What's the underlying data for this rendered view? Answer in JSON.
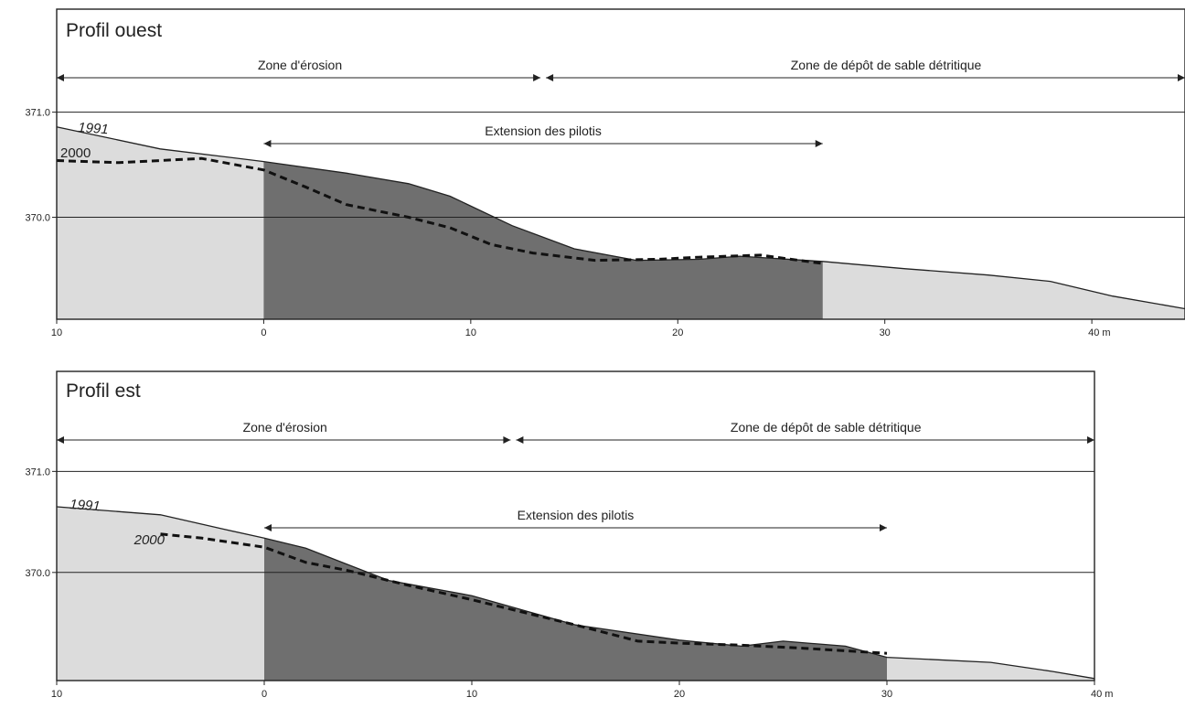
{
  "colors": {
    "light_fill": "#dcdcdc",
    "dark_fill": "#6f6f6f",
    "line": "#222222",
    "background": "#ffffff"
  },
  "chart_data": [
    {
      "type": "area",
      "title": "Profil ouest",
      "x_tick_labels": [
        "10",
        "0",
        "10",
        "20",
        "30",
        "40 m"
      ],
      "x_ticks": [
        -10,
        0,
        10,
        20,
        30,
        40
      ],
      "xlim": [
        -10,
        44.5
      ],
      "y_tick_labels": [
        "371.0",
        "370.0"
      ],
      "y_ticks": [
        371.0,
        370.0
      ],
      "ylim": [
        369.03,
        371.98
      ],
      "grid": "horizontal lines at 370.0 and 371.0",
      "zones": [
        {
          "label": "Zone d'érosion",
          "from": -10,
          "to": 13.5
        },
        {
          "label": "Zone de dépôt de sable détritique",
          "from": 13.5,
          "to": 44.5
        }
      ],
      "pilotis": {
        "label": "Extension des pilotis",
        "from": 0,
        "to": 27
      },
      "series": [
        {
          "name": "1991",
          "style": "solid",
          "x": [
            -10,
            -5,
            0,
            4,
            7,
            9,
            12,
            15,
            18,
            21,
            23,
            27,
            31,
            35,
            38,
            41,
            44.5
          ],
          "y": [
            370.86,
            370.65,
            370.53,
            370.42,
            370.32,
            370.2,
            369.92,
            369.7,
            369.59,
            369.6,
            369.63,
            369.58,
            369.51,
            369.45,
            369.39,
            369.25,
            369.13
          ]
        },
        {
          "name": "2000",
          "style": "dashed",
          "x": [
            -10,
            -7,
            -3,
            0,
            2,
            4,
            7,
            9,
            11,
            13,
            16,
            19,
            21,
            24,
            27
          ],
          "y": [
            370.54,
            370.52,
            370.56,
            370.45,
            370.29,
            370.12,
            370.0,
            369.9,
            369.74,
            369.66,
            369.59,
            369.6,
            369.62,
            369.64,
            369.56
          ]
        }
      ]
    },
    {
      "type": "area",
      "title": "Profil est",
      "x_tick_labels": [
        "10",
        "0",
        "10",
        "20",
        "30",
        "40 m"
      ],
      "x_ticks": [
        -10,
        0,
        10,
        20,
        30,
        40
      ],
      "xlim": [
        -10,
        40
      ],
      "y_tick_labels": [
        "371.0",
        "370.0"
      ],
      "y_ticks": [
        371.0,
        370.0
      ],
      "ylim": [
        368.93,
        371.99
      ],
      "grid": "horizontal lines at 370.0 and 371.0",
      "zones": [
        {
          "label": "Zone d'érosion",
          "from": -10,
          "to": 12
        },
        {
          "label": "Zone de dépôt de sable détritique",
          "from": 12,
          "to": 40
        }
      ],
      "pilotis": {
        "label": "Extension des pilotis",
        "from": 0,
        "to": 30
      },
      "series": [
        {
          "name": "1991",
          "style": "solid",
          "x": [
            -10,
            -5,
            -2,
            0,
            2,
            4,
            6,
            10,
            15,
            20,
            23,
            25,
            28,
            30,
            35,
            38,
            40
          ],
          "y": [
            370.65,
            370.57,
            370.43,
            370.34,
            370.24,
            370.08,
            369.92,
            369.77,
            369.48,
            369.33,
            369.27,
            369.32,
            369.27,
            369.16,
            369.11,
            369.02,
            368.95
          ]
        },
        {
          "name": "2000",
          "style": "dashed",
          "x": [
            -5,
            -3,
            0,
            2,
            4,
            7,
            10,
            12,
            15,
            18,
            20,
            23,
            26,
            30
          ],
          "y": [
            370.38,
            370.34,
            370.25,
            370.1,
            370.02,
            369.87,
            369.73,
            369.63,
            369.48,
            369.32,
            369.3,
            369.28,
            369.25,
            369.2
          ]
        }
      ]
    }
  ]
}
